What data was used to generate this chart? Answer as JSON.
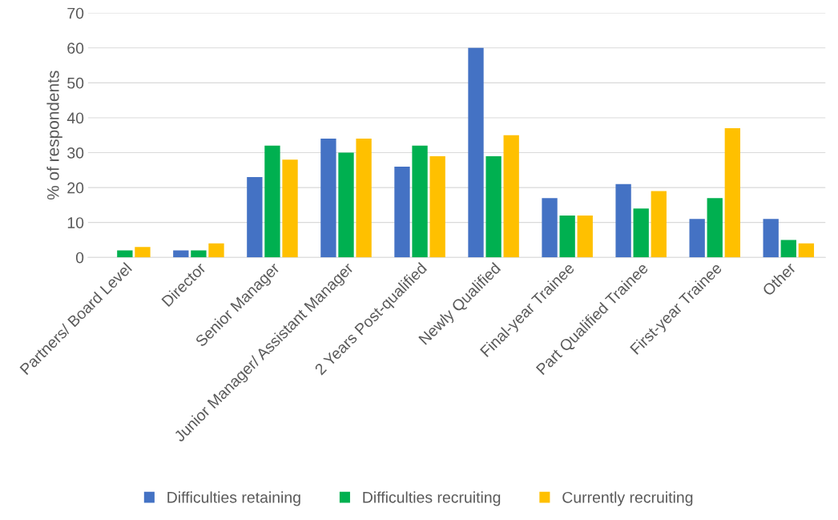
{
  "chart_data": {
    "type": "bar",
    "ylabel": "% of respondents",
    "categories": [
      "Partners/ Board Level",
      "Director",
      "Senior Manager",
      "Junior Manager/ Assistant Manager",
      "2 Years Post-qualified",
      "Newly Qualified",
      "Final-year Trainee",
      "Part Qualified Trainee",
      "First-year Trainee",
      "Other"
    ],
    "series": [
      {
        "name": "Difficulties retaining",
        "color": "#4472c4",
        "values": [
          0,
          2,
          23,
          34,
          26,
          60,
          17,
          21,
          11,
          11
        ]
      },
      {
        "name": "Difficulties recruiting",
        "color": "#00b050",
        "values": [
          2,
          2,
          32,
          30,
          32,
          29,
          12,
          14,
          17,
          5
        ]
      },
      {
        "name": "Currently recruiting",
        "color": "#ffc000",
        "values": [
          3,
          4,
          28,
          34,
          29,
          35,
          12,
          19,
          37,
          4
        ]
      }
    ],
    "ylim": [
      0,
      70
    ],
    "yticks": [
      0,
      10,
      20,
      30,
      40,
      50,
      60,
      70
    ],
    "grid": "y",
    "legend": "bottom"
  }
}
